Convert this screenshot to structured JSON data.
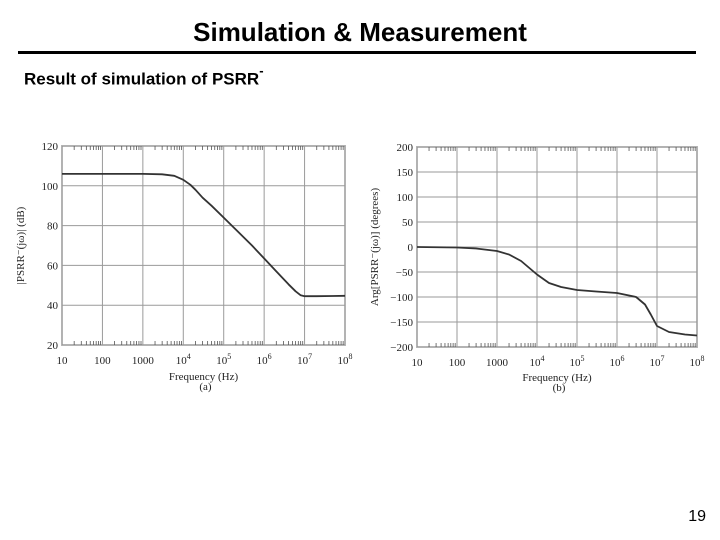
{
  "slide": {
    "title": "Simulation & Measurement",
    "subtitle": "Result of simulation of PSRR",
    "subtitle_sup": "-",
    "page_number": "19"
  },
  "chart_data": [
    {
      "type": "line",
      "panel_label": "(a)",
      "xlabel": "Frequency (Hz)",
      "ylabel": "|PSRR⁻(jω)|  (dB)",
      "xscale": "log",
      "xlim": [
        10,
        100000000
      ],
      "ylim": [
        20,
        120
      ],
      "x_tick_labels": [
        "10",
        "100",
        "1000",
        "10⁴",
        "10⁵",
        "10⁶",
        "10⁷",
        "10⁸"
      ],
      "y_ticks": [
        20,
        40,
        60,
        80,
        100,
        120
      ],
      "grid": true,
      "line_color": "#333333",
      "series": [
        {
          "x": [
            10,
            100,
            1000,
            3000,
            6000,
            10000,
            15000,
            20000,
            30000,
            50000,
            100000,
            200000,
            500000,
            1000000,
            2000000,
            4000000,
            6000000,
            8000000,
            10000000,
            20000000,
            50000000,
            100000000
          ],
          "values": [
            106,
            106,
            106,
            105.8,
            105,
            103,
            100.5,
            98,
            94,
            90,
            84,
            78,
            70,
            63.5,
            57,
            50.5,
            47,
            45,
            44.5,
            44.5,
            44.6,
            44.7
          ]
        }
      ]
    },
    {
      "type": "line",
      "panel_label": "(b)",
      "xlabel": "Frequency (Hz)",
      "ylabel": "Arg[PSRR⁻(jω)]  (degrees)",
      "xscale": "log",
      "xlim": [
        10,
        100000000
      ],
      "ylim": [
        -200,
        200
      ],
      "x_tick_labels": [
        "10",
        "100",
        "1000",
        "10⁴",
        "10⁵",
        "10⁶",
        "10⁷",
        "10⁸"
      ],
      "y_ticks": [
        -200,
        -150,
        -100,
        -50,
        0,
        50,
        100,
        150,
        200
      ],
      "y_tick_labels": [
        "−200",
        "−150",
        "−100",
        "−50",
        "0",
        "50",
        "100",
        "150",
        "200"
      ],
      "grid": true,
      "line_color": "#333333",
      "series": [
        {
          "x": [
            10,
            100,
            300,
            1000,
            2000,
            4000,
            10000,
            20000,
            40000,
            100000,
            300000,
            1000000,
            3000000,
            5000000,
            7000000,
            10000000,
            20000000,
            50000000,
            100000000
          ],
          "values": [
            0,
            -1,
            -3,
            -8,
            -15,
            -28,
            -55,
            -72,
            -80,
            -86,
            -89,
            -92,
            -100,
            -115,
            -135,
            -158,
            -170,
            -175,
            -177
          ]
        }
      ]
    }
  ]
}
